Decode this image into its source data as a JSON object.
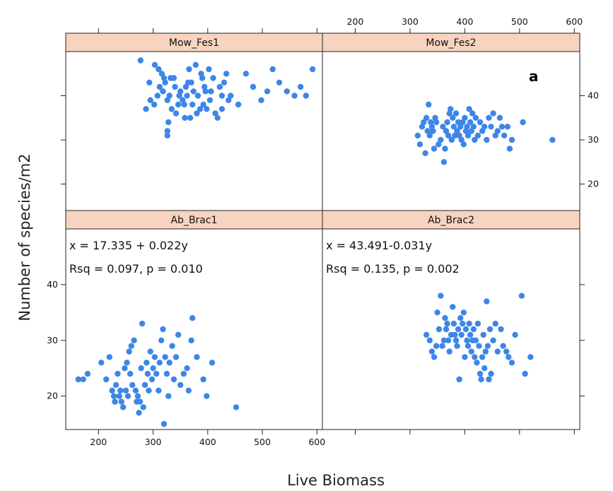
{
  "colors": {
    "point": "#3d86e8",
    "strip": "#f8d4c0",
    "frame": "#222222"
  },
  "chart_data": {
    "type": "scatter",
    "layout": "2x2 lattice panels, shared axes",
    "xlabel": "Live Biomass",
    "ylabel": "Number of species/m2",
    "corner_label": "a",
    "xlim": [
      140,
      610
    ],
    "ylim": [
      14,
      50
    ],
    "x_ticks": [
      200,
      300,
      400,
      500,
      600
    ],
    "y_ticks": [
      20,
      30,
      40
    ],
    "panels": [
      {
        "name": "Mow_Fes1",
        "position": "top-left",
        "annotation": [],
        "points": [
          [
            277,
            48
          ],
          [
            293,
            43
          ],
          [
            303,
            47
          ],
          [
            310,
            46
          ],
          [
            316,
            45
          ],
          [
            320,
            44
          ],
          [
            287,
            37
          ],
          [
            295,
            39
          ],
          [
            302,
            38
          ],
          [
            308,
            40
          ],
          [
            312,
            42
          ],
          [
            318,
            41
          ],
          [
            322,
            43
          ],
          [
            326,
            39
          ],
          [
            330,
            40
          ],
          [
            334,
            37
          ],
          [
            338,
            44
          ],
          [
            342,
            36
          ],
          [
            346,
            38
          ],
          [
            350,
            41
          ],
          [
            354,
            39
          ],
          [
            358,
            35
          ],
          [
            362,
            40
          ],
          [
            366,
            46
          ],
          [
            370,
            43
          ],
          [
            374,
            41
          ],
          [
            378,
            47
          ],
          [
            382,
            40
          ],
          [
            386,
            37
          ],
          [
            390,
            44
          ],
          [
            394,
            42
          ],
          [
            398,
            37
          ],
          [
            402,
            46
          ],
          [
            406,
            41
          ],
          [
            410,
            44
          ],
          [
            414,
            36
          ],
          [
            418,
            35
          ],
          [
            422,
            42
          ],
          [
            426,
            40
          ],
          [
            430,
            43
          ],
          [
            434,
            45
          ],
          [
            438,
            39
          ],
          [
            332,
            44
          ],
          [
            340,
            42
          ],
          [
            348,
            40
          ],
          [
            357,
            38
          ],
          [
            364,
            43
          ],
          [
            372,
            38
          ],
          [
            380,
            36
          ],
          [
            388,
            45
          ],
          [
            396,
            41
          ],
          [
            404,
            39
          ],
          [
            328,
            34
          ],
          [
            326,
            31
          ],
          [
            326,
            32
          ],
          [
            360,
            42
          ],
          [
            368,
            35
          ],
          [
            392,
            38
          ],
          [
            426,
            37
          ],
          [
            442,
            40
          ],
          [
            456,
            38
          ],
          [
            470,
            45
          ],
          [
            483,
            42
          ],
          [
            498,
            39
          ],
          [
            509,
            41
          ],
          [
            519,
            46
          ],
          [
            531,
            43
          ],
          [
            545,
            41
          ],
          [
            559,
            40
          ],
          [
            570,
            42
          ],
          [
            580,
            40
          ],
          [
            592,
            46
          ]
        ]
      },
      {
        "name": "Mow_Fes2",
        "position": "top-right",
        "annotation": [],
        "points": [
          [
            314,
            31
          ],
          [
            318,
            29
          ],
          [
            322,
            33
          ],
          [
            325,
            34
          ],
          [
            328,
            27
          ],
          [
            330,
            35
          ],
          [
            332,
            32
          ],
          [
            334,
            38
          ],
          [
            336,
            31
          ],
          [
            338,
            34
          ],
          [
            340,
            33
          ],
          [
            342,
            32
          ],
          [
            344,
            28
          ],
          [
            346,
            35
          ],
          [
            348,
            34
          ],
          [
            352,
            29
          ],
          [
            356,
            30
          ],
          [
            360,
            33
          ],
          [
            362,
            25
          ],
          [
            364,
            28
          ],
          [
            366,
            32
          ],
          [
            368,
            34
          ],
          [
            370,
            31
          ],
          [
            372,
            36
          ],
          [
            374,
            37
          ],
          [
            376,
            30
          ],
          [
            378,
            35
          ],
          [
            380,
            33
          ],
          [
            382,
            31
          ],
          [
            384,
            36
          ],
          [
            386,
            32
          ],
          [
            388,
            34
          ],
          [
            390,
            31
          ],
          [
            392,
            33
          ],
          [
            394,
            30
          ],
          [
            396,
            34
          ],
          [
            398,
            29
          ],
          [
            400,
            35
          ],
          [
            402,
            32
          ],
          [
            404,
            33
          ],
          [
            406,
            31
          ],
          [
            408,
            37
          ],
          [
            410,
            34
          ],
          [
            412,
            32
          ],
          [
            414,
            36
          ],
          [
            416,
            33
          ],
          [
            418,
            30
          ],
          [
            420,
            35
          ],
          [
            424,
            31
          ],
          [
            428,
            34
          ],
          [
            432,
            32
          ],
          [
            436,
            33
          ],
          [
            440,
            30
          ],
          [
            444,
            35
          ],
          [
            448,
            33
          ],
          [
            452,
            36
          ],
          [
            456,
            31
          ],
          [
            460,
            32
          ],
          [
            464,
            35
          ],
          [
            468,
            33
          ],
          [
            472,
            31
          ],
          [
            478,
            33
          ],
          [
            482,
            28
          ],
          [
            486,
            30
          ],
          [
            506,
            34
          ],
          [
            560,
            30
          ]
        ]
      },
      {
        "name": "Ab_Brac1",
        "position": "bottom-left",
        "annotation": [
          "x = 17.335 + 0.022y",
          "Rsq = 0.097, p = 0.010"
        ],
        "points": [
          [
            163,
            23
          ],
          [
            172,
            23
          ],
          [
            180,
            24
          ],
          [
            205,
            26
          ],
          [
            214,
            23
          ],
          [
            220,
            27
          ],
          [
            225,
            21
          ],
          [
            228,
            20
          ],
          [
            230,
            19
          ],
          [
            232,
            22
          ],
          [
            235,
            24
          ],
          [
            238,
            20
          ],
          [
            240,
            21
          ],
          [
            242,
            19
          ],
          [
            245,
            18
          ],
          [
            248,
            25
          ],
          [
            250,
            21
          ],
          [
            252,
            26
          ],
          [
            254,
            20
          ],
          [
            256,
            28
          ],
          [
            258,
            24
          ],
          [
            260,
            29
          ],
          [
            262,
            22
          ],
          [
            265,
            30
          ],
          [
            268,
            21
          ],
          [
            270,
            19
          ],
          [
            272,
            20
          ],
          [
            274,
            17
          ],
          [
            276,
            19
          ],
          [
            278,
            25
          ],
          [
            280,
            33
          ],
          [
            282,
            18
          ],
          [
            285,
            22
          ],
          [
            288,
            26
          ],
          [
            290,
            24
          ],
          [
            292,
            21
          ],
          [
            295,
            28
          ],
          [
            298,
            23
          ],
          [
            300,
            25
          ],
          [
            303,
            27
          ],
          [
            306,
            24
          ],
          [
            310,
            21
          ],
          [
            312,
            26
          ],
          [
            315,
            30
          ],
          [
            318,
            32
          ],
          [
            320,
            15
          ],
          [
            322,
            27
          ],
          [
            325,
            24
          ],
          [
            328,
            20
          ],
          [
            330,
            26
          ],
          [
            335,
            29
          ],
          [
            338,
            23
          ],
          [
            342,
            27
          ],
          [
            346,
            31
          ],
          [
            350,
            22
          ],
          [
            356,
            24
          ],
          [
            362,
            25
          ],
          [
            365,
            21
          ],
          [
            370,
            30
          ],
          [
            372,
            34
          ],
          [
            380,
            27
          ],
          [
            392,
            23
          ],
          [
            398,
            20
          ],
          [
            408,
            26
          ],
          [
            452,
            18
          ]
        ]
      },
      {
        "name": "Ab_Brac2",
        "position": "bottom-right",
        "annotation": [
          "x = 43.491-0.031y",
          "Rsq = 0.135, p = 0.002"
        ],
        "points": [
          [
            330,
            31
          ],
          [
            336,
            30
          ],
          [
            340,
            28
          ],
          [
            344,
            27
          ],
          [
            348,
            29
          ],
          [
            350,
            35
          ],
          [
            353,
            32
          ],
          [
            356,
            38
          ],
          [
            359,
            29
          ],
          [
            362,
            30
          ],
          [
            364,
            34
          ],
          [
            366,
            32
          ],
          [
            368,
            33
          ],
          [
            370,
            30
          ],
          [
            372,
            28
          ],
          [
            375,
            31
          ],
          [
            378,
            36
          ],
          [
            380,
            33
          ],
          [
            382,
            31
          ],
          [
            384,
            30
          ],
          [
            386,
            29
          ],
          [
            388,
            32
          ],
          [
            390,
            23
          ],
          [
            392,
            34
          ],
          [
            394,
            31
          ],
          [
            396,
            33
          ],
          [
            398,
            35
          ],
          [
            400,
            27
          ],
          [
            402,
            32
          ],
          [
            404,
            30
          ],
          [
            406,
            29
          ],
          [
            408,
            33
          ],
          [
            410,
            31
          ],
          [
            412,
            28
          ],
          [
            414,
            30
          ],
          [
            416,
            32
          ],
          [
            418,
            27
          ],
          [
            420,
            30
          ],
          [
            422,
            26
          ],
          [
            424,
            33
          ],
          [
            426,
            29
          ],
          [
            428,
            24
          ],
          [
            430,
            23
          ],
          [
            432,
            27
          ],
          [
            434,
            31
          ],
          [
            436,
            25
          ],
          [
            438,
            28
          ],
          [
            440,
            37
          ],
          [
            442,
            29
          ],
          [
            444,
            23
          ],
          [
            446,
            32
          ],
          [
            448,
            24
          ],
          [
            452,
            30
          ],
          [
            456,
            33
          ],
          [
            460,
            28
          ],
          [
            466,
            32
          ],
          [
            470,
            29
          ],
          [
            476,
            28
          ],
          [
            480,
            27
          ],
          [
            486,
            26
          ],
          [
            492,
            31
          ],
          [
            504,
            38
          ],
          [
            510,
            24
          ],
          [
            520,
            27
          ]
        ]
      }
    ]
  }
}
